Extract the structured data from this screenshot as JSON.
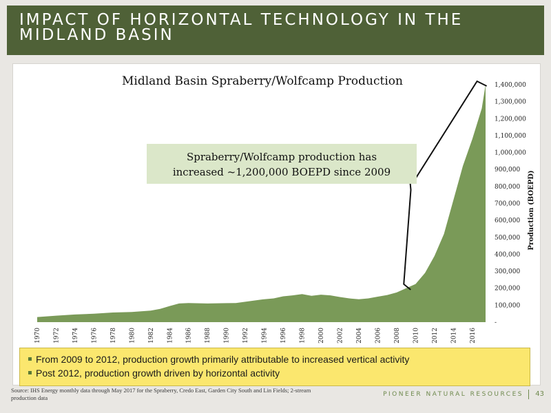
{
  "header": {
    "title": "IMPACT OF HORIZONTAL TECHNOLOGY IN THE MIDLAND BASIN"
  },
  "chart_data": {
    "type": "area",
    "title": "Midland Basin Spraberry/Wolfcamp Production",
    "ylabel": "Production (BOEPD)",
    "ylim": [
      0,
      1400000
    ],
    "y_ticks": [
      "-",
      "100,000",
      "200,000",
      "300,000",
      "400,000",
      "500,000",
      "600,000",
      "700,000",
      "800,000",
      "900,000",
      "1,000,000",
      "1,100,000",
      "1,200,000",
      "1,300,000",
      "1,400,000"
    ],
    "x_ticks": [
      "1970",
      "1972",
      "1974",
      "1976",
      "1978",
      "1980",
      "1982",
      "1984",
      "1986",
      "1988",
      "1990",
      "1992",
      "1994",
      "1996",
      "1998",
      "2000",
      "2002",
      "2004",
      "2006",
      "2008",
      "2010",
      "2012",
      "2014",
      "2016"
    ],
    "x_range": [
      1970,
      2017.4
    ],
    "y_axis_position": "right",
    "grid": false,
    "series": [
      {
        "color": "#7a9a58",
        "points": [
          [
            1970,
            30000
          ],
          [
            1972,
            38000
          ],
          [
            1974,
            45000
          ],
          [
            1976,
            50000
          ],
          [
            1978,
            57000
          ],
          [
            1980,
            60000
          ],
          [
            1982,
            68000
          ],
          [
            1983,
            78000
          ],
          [
            1984,
            95000
          ],
          [
            1985,
            110000
          ],
          [
            1986,
            113000
          ],
          [
            1988,
            110000
          ],
          [
            1990,
            112000
          ],
          [
            1991,
            113000
          ],
          [
            1992,
            120000
          ],
          [
            1994,
            135000
          ],
          [
            1995,
            140000
          ],
          [
            1996,
            152000
          ],
          [
            1997,
            158000
          ],
          [
            1998,
            165000
          ],
          [
            1999,
            155000
          ],
          [
            2000,
            162000
          ],
          [
            2001,
            158000
          ],
          [
            2002,
            148000
          ],
          [
            2003,
            140000
          ],
          [
            2004,
            135000
          ],
          [
            2005,
            140000
          ],
          [
            2006,
            150000
          ],
          [
            2007,
            160000
          ],
          [
            2008,
            175000
          ],
          [
            2009,
            200000
          ],
          [
            2010,
            225000
          ],
          [
            2011,
            290000
          ],
          [
            2012,
            390000
          ],
          [
            2013,
            520000
          ],
          [
            2014,
            720000
          ],
          [
            2015,
            920000
          ],
          [
            2016,
            1080000
          ],
          [
            2017,
            1260000
          ],
          [
            2017.4,
            1400000
          ]
        ]
      }
    ]
  },
  "callout": {
    "text_line1": "Spraberry/Wolfcamp production has",
    "text_line2": "increased ~1,200,000 BOEPD since 2009"
  },
  "bullets": [
    "From 2009 to 2012, production growth primarily attributable to increased vertical activity",
    "Post 2012, production growth driven by horizontal activity"
  ],
  "source_text": "Source: IHS Energy monthly data through May 2017 for the Spraberry, Credo East, Garden City South and Lin Fields; 2-stream production data",
  "footer": {
    "brand": "PIONEER NATURAL RESOURCES",
    "page_number": "43"
  }
}
